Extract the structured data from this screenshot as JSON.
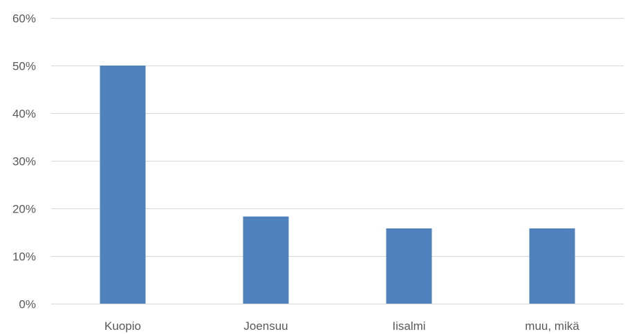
{
  "chart_data": {
    "type": "bar",
    "title": "",
    "xlabel": "",
    "ylabel": "",
    "categories": [
      "Kuopio",
      "Joensuu",
      "Iisalmi",
      "muu, mikä"
    ],
    "values": [
      50,
      18.3,
      15.8,
      15.8
    ],
    "ylim": [
      0,
      60
    ],
    "yticks": [
      0,
      10,
      20,
      30,
      40,
      50,
      60
    ],
    "ytick_labels": [
      "0%",
      "10%",
      "20%",
      "30%",
      "40%",
      "50%",
      "60%"
    ],
    "grid": true,
    "legend": "none",
    "bar_color": "#4f81bd"
  }
}
